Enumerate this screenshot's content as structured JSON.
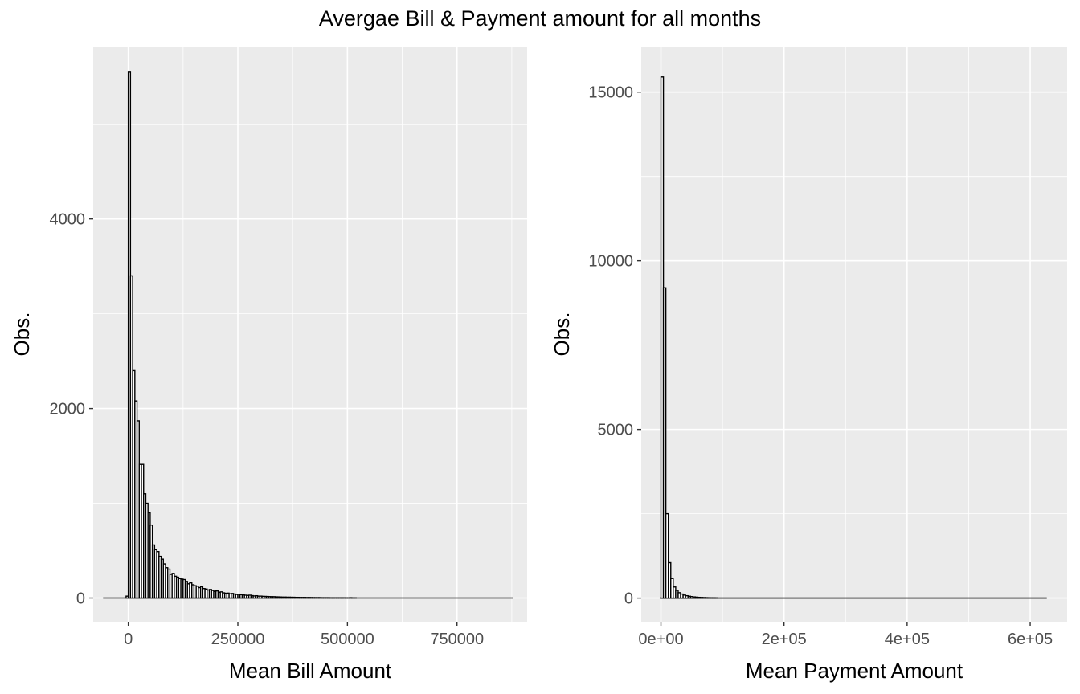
{
  "figure": {
    "title": "Avergae Bill & Payment amount for all months",
    "panel_background": "#ebebeb",
    "grid_color": "#ffffff",
    "bar_fill": "#ffffff",
    "bar_outline": "#000000"
  },
  "chart_data": [
    {
      "type": "bar",
      "xlabel": "Mean Bill Amount",
      "ylabel": "Obs.",
      "xlim": [
        -80000,
        910000
      ],
      "ylim": [
        -250,
        5820
      ],
      "x_ticks": [
        0,
        250000,
        500000,
        750000
      ],
      "x_tick_labels": [
        "0",
        "250000",
        "500000",
        "750000"
      ],
      "y_ticks": [
        0,
        2000,
        4000
      ],
      "y_tick_labels": [
        "0",
        "2000",
        "4000"
      ],
      "grid": true,
      "bin_width": 5000,
      "x_range": [
        -57500,
        877500
      ],
      "bins_x": [
        -2500,
        2500,
        7500,
        12500,
        17500,
        22500,
        27500,
        32500,
        37500,
        42500,
        47500,
        52500,
        57500,
        62500,
        67500,
        72500,
        77500,
        82500,
        87500,
        92500,
        97500,
        102500,
        107500,
        112500,
        117500,
        122500,
        127500,
        132500,
        137500,
        142500,
        147500,
        152500,
        157500,
        162500,
        167500,
        172500,
        177500,
        182500,
        187500,
        192500,
        197500,
        202500,
        207500,
        212500,
        217500,
        222500,
        227500,
        232500,
        237500,
        242500,
        247500,
        252500,
        257500,
        262500,
        267500,
        272500,
        277500,
        282500,
        287500,
        292500,
        297500,
        302500,
        307500,
        312500,
        317500,
        322500,
        327500,
        332500,
        337500,
        342500,
        347500,
        352500,
        357500,
        362500,
        367500,
        372500,
        377500,
        382500,
        387500,
        392500,
        397500,
        402500,
        407500,
        412500,
        417500,
        422500,
        427500,
        432500,
        437500,
        442500,
        447500,
        452500,
        457500,
        462500,
        467500,
        472500,
        477500,
        482500,
        487500,
        492500,
        497500,
        502500,
        507500,
        512500,
        517500
      ],
      "bins_count": [
        20,
        5550,
        3400,
        2400,
        2080,
        1870,
        1410,
        1410,
        1100,
        1000,
        900,
        770,
        560,
        510,
        490,
        440,
        410,
        360,
        320,
        305,
        250,
        260,
        230,
        220,
        205,
        200,
        195,
        175,
        150,
        160,
        140,
        130,
        125,
        110,
        120,
        100,
        95,
        85,
        90,
        80,
        70,
        75,
        60,
        65,
        55,
        50,
        52,
        45,
        48,
        42,
        38,
        40,
        35,
        32,
        30,
        28,
        30,
        25,
        22,
        24,
        20,
        20,
        18,
        17,
        16,
        15,
        14,
        14,
        12,
        12,
        11,
        10,
        10,
        9,
        9,
        8,
        8,
        7,
        7,
        6,
        6,
        6,
        5,
        5,
        5,
        4,
        4,
        4,
        4,
        3,
        3,
        3,
        3,
        2,
        2,
        2,
        2,
        2,
        2,
        2,
        1,
        1,
        3,
        1,
        1
      ]
    },
    {
      "type": "bar",
      "xlabel": "Mean Payment Amount",
      "ylabel": "Obs.",
      "xlim": [
        -32000,
        660000
      ],
      "ylim": [
        -700,
        16350
      ],
      "x_ticks": [
        0,
        200000,
        400000,
        600000
      ],
      "x_tick_labels": [
        "0e+00",
        "2e+05",
        "4e+05",
        "6e+05"
      ],
      "y_ticks": [
        0,
        5000,
        10000,
        15000
      ],
      "y_tick_labels": [
        "0",
        "5000",
        "10000",
        "15000"
      ],
      "grid": true,
      "bin_width": 4000,
      "x_range": [
        -2000,
        627000
      ],
      "bins_x": [
        2000,
        6000,
        10000,
        14000,
        18000,
        22000,
        26000,
        30000,
        34000,
        38000,
        42000,
        46000,
        50000,
        54000,
        58000,
        62000,
        66000,
        70000,
        74000,
        78000,
        82000,
        86000,
        90000
      ],
      "bins_count": [
        15450,
        9200,
        2500,
        1050,
        580,
        330,
        230,
        160,
        120,
        90,
        70,
        55,
        45,
        35,
        28,
        22,
        18,
        15,
        12,
        10,
        8,
        6,
        5
      ]
    }
  ]
}
